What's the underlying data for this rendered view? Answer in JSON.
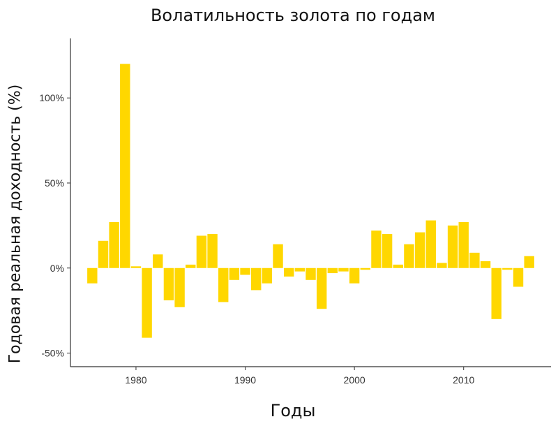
{
  "chart_data": {
    "type": "bar",
    "title": "Волатильность золота по годам",
    "xlabel": "Годы",
    "ylabel": "Годовая реальная доходность (%)",
    "x": [
      1976,
      1977,
      1978,
      1979,
      1980,
      1981,
      1982,
      1983,
      1984,
      1985,
      1986,
      1987,
      1988,
      1989,
      1990,
      1991,
      1992,
      1993,
      1994,
      1995,
      1996,
      1997,
      1998,
      1999,
      2000,
      2001,
      2002,
      2003,
      2004,
      2005,
      2006,
      2007,
      2008,
      2009,
      2010,
      2011,
      2012,
      2013,
      2014,
      2015,
      2016
    ],
    "values": [
      -9,
      16,
      27,
      120,
      1,
      -41,
      8,
      -19,
      -23,
      2,
      19,
      20,
      -20,
      -7,
      -4,
      -13,
      -9,
      14,
      -5,
      -2,
      -7,
      -24,
      -3,
      -2,
      -9,
      -1,
      22,
      20,
      2,
      14,
      21,
      28,
      3,
      25,
      27,
      9,
      4,
      -30,
      -1,
      -11,
      7
    ],
    "xlim": [
      1974,
      2018
    ],
    "ylim": [
      -58,
      135
    ],
    "x_ticks": [
      1980,
      1990,
      2000,
      2010
    ],
    "x_tick_labels": [
      "1980",
      "1990",
      "2000",
      "2010"
    ],
    "y_ticks": [
      -50,
      0,
      50,
      100
    ],
    "y_tick_labels": [
      "-50%",
      "0%",
      "50%",
      "100%"
    ],
    "grid": false,
    "bar_color": "#FFD700"
  }
}
